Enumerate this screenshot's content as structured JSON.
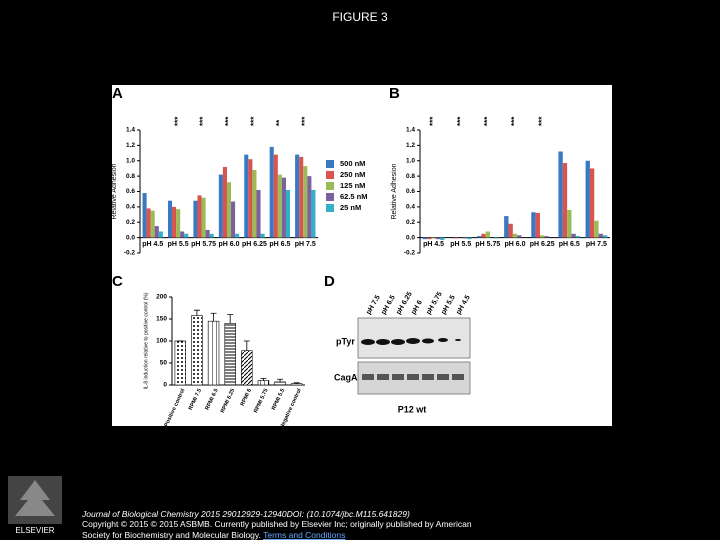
{
  "title": "FIGURE 3",
  "panels": [
    "A",
    "B",
    "C",
    "D"
  ],
  "chart_data": [
    {
      "type": "bar",
      "y_label": "Relative Adhesion",
      "categories": [
        "pH 4.5",
        "pH 5.5",
        "pH 5.75",
        "pH 6.0",
        "pH 6.25",
        "pH 6.5",
        "pH 7.5"
      ],
      "series": [
        {
          "name": "500 nM",
          "color": "#3a78c2",
          "values": [
            0.58,
            0.48,
            0.48,
            0.82,
            1.08,
            1.18,
            1.08
          ]
        },
        {
          "name": "250 nM",
          "color": "#d9534f",
          "values": [
            0.38,
            0.4,
            0.55,
            0.92,
            1.02,
            1.08,
            1.05
          ]
        },
        {
          "name": "125 nM",
          "color": "#9bbb59",
          "values": [
            0.35,
            0.37,
            0.52,
            0.72,
            0.88,
            0.82,
            0.93
          ]
        },
        {
          "name": "62.5 nM",
          "color": "#7d60a0",
          "values": [
            0.15,
            0.08,
            0.1,
            0.47,
            0.62,
            0.78,
            0.8
          ]
        },
        {
          "name": "25 nM",
          "color": "#31b0c6",
          "values": [
            0.08,
            0.05,
            0.05,
            0.05,
            0.05,
            0.62,
            0.62
          ]
        }
      ],
      "annotations": [
        "***",
        "***",
        "***",
        "***",
        "**",
        "***"
      ],
      "ylim": [
        -0.2,
        1.4
      ],
      "yticks": [
        -0.2,
        {
          "value": 0,
          "label": "0.0"
        },
        0.2,
        0.4,
        0.6,
        0.8,
        {
          "value": 1,
          "label": "1.0"
        },
        1.2,
        1.4
      ],
      "legend": "right"
    },
    {
      "type": "bar",
      "y_label": "Relative Adhesion",
      "categories": [
        "pH 4.5",
        "pH 5.5",
        "pH 5.75",
        "pH 6.0",
        "pH 6.25",
        "pH 6.5",
        "pH 7.5"
      ],
      "series": [
        {
          "color": "#3a78c2",
          "values": [
            -0.02,
            0.0,
            0.02,
            0.28,
            0.33,
            1.12,
            1.0
          ]
        },
        {
          "color": "#d9534f",
          "values": [
            -0.02,
            -0.01,
            0.05,
            0.18,
            0.32,
            0.97,
            0.9
          ]
        },
        {
          "color": "#9bbb59",
          "values": [
            -0.01,
            0.0,
            0.08,
            0.05,
            0.03,
            0.36,
            0.22
          ]
        },
        {
          "color": "#7d60a0",
          "values": [
            -0.02,
            -0.01,
            0.0,
            0.03,
            0.02,
            0.05,
            0.05
          ]
        },
        {
          "color": "#31b0c6",
          "values": [
            -0.03,
            -0.02,
            -0.01,
            0.0,
            0.0,
            0.02,
            0.03
          ]
        }
      ],
      "annotations": [
        "***",
        "***",
        "***",
        "***",
        "***"
      ],
      "ylim": [
        -0.2,
        1.4
      ],
      "yticks": [
        -0.2,
        {
          "value": 0,
          "label": "0.0"
        },
        0.2,
        0.4,
        0.6,
        0.8,
        {
          "value": 1,
          "label": "1.0"
        },
        1.2,
        1.4
      ]
    },
    {
      "type": "bar",
      "y_label": "IL-8 induction relative to positive control (%)",
      "categories": [
        "Positive control",
        "RPMI 7.5",
        "RPMI 6.5",
        "RPMI 6.25",
        "RPMI 6",
        "RPMI 5.75",
        "RPMI 5.5",
        "Negative control"
      ],
      "values": [
        100,
        158,
        145,
        140,
        78,
        10,
        7,
        3
      ],
      "errors": [
        0,
        12,
        18,
        20,
        22,
        5,
        6,
        2
      ],
      "ylim": [
        0,
        200
      ],
      "yticks": [
        0,
        50,
        100,
        150,
        200
      ]
    }
  ],
  "blot": {
    "lanes": [
      "pH 7.5",
      "pH 6.5",
      "pH 6.25",
      "pH 6",
      "pH 5.75",
      "pH 5.5",
      "pH 4.5"
    ],
    "rows": [
      "pTyr",
      "CagA"
    ],
    "strain": "P12 wt"
  },
  "footer": {
    "journal": "Journal of Biological Chemistry 2015 29012929-12940DOI: (10.1074/jbc.M115.641829)",
    "copyright": "Copyright © 2015 © 2015 ASBMB. Currently published by Elsevier Inc; originally published by American",
    "copyright_cont": "Society for Biochemistry and Molecular Biology.",
    "link": "Terms and Conditions",
    "publisher": "ELSEVIER"
  }
}
